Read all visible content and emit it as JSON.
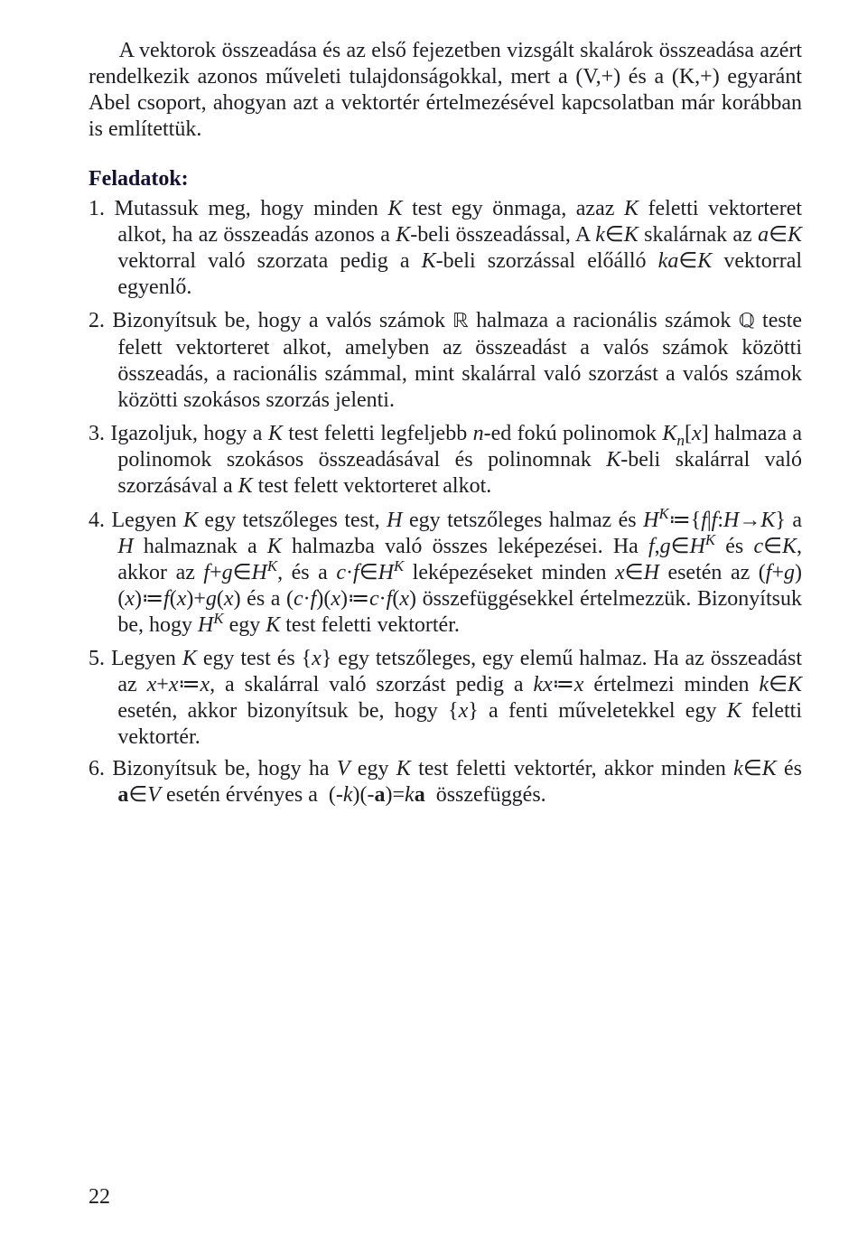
{
  "intro": "A vektorok összeadása és az első fejezetben vizsgált skalárok össze­adása azért rendelkezik azonos műveleti tulajdonságokkal, mert a (V,+) és a (K,+) egyaránt Abel csoport, ahogyan azt a vektortér értel­mezésével kapcso­latban már korábban is említettük.",
  "section_head": "Feladatok:",
  "exercises": [
    {
      "num": "1.",
      "html": "Mutassuk meg, hogy minden <span class=\"i\">K</span> test egy önmaga, azaz <span class=\"i\">K</span> feletti vektorteret alkot, ha az összeadás azonos a <span class=\"i\">K</span>-beli összeadással, A <span class=\"i\">k</span>∈<span class=\"i\">K</span> skalárnak az <span class=\"i\">a</span>∈<span class=\"i\">K</span> vektorral való szorzata pedig a <span class=\"i\">K</span>-beli szorzással előálló <span class=\"i\">ka</span>∈<span class=\"i\">K</span> vektorral egyenlő."
    },
    {
      "num": "2.",
      "html": "Bizonyítsuk be, hogy a valós számok <span class=\"ds\">ℝ</span> halmaza a racionális számok <span class=\"ds\">ℚ</span> teste felett vektorteret alkot, amelyben az összeadást a valós számok közötti összeadás, a racionális számmal, mint skalárral való szorzást a valós számok közötti szokásos szorzás jelenti."
    },
    {
      "num": "3.",
      "html": "Igazoljuk, hogy a <span class=\"i\">K</span> test feletti legfeljebb <span class=\"i\">n</span>-ed fokú polinomok <span class=\"i\">K<sub>n</sub></span>[<span class=\"i\">x</span>] halmaza a polinomok szokásos összeadásával és polinomnak <span class=\"i\">K</span>-beli ska­lárral való szorzásával a <span class=\"i\">K</span> test felett vektorteret alkot."
    },
    {
      "num": "4.",
      "html": "Legyen <span class=\"i\">K</span> egy tetszőleges test, <span class=\"i\">H</span> egy tetszőleges halmaz és <span class=\"i\">H<sup>K</sup></span>≔{<span class=\"i\">f</span>|<span class=\"i\">f</span>:<span class=\"i\">H</span>→<span class=\"i\">K</span>} a <span class=\"i\">H</span> halmaznak a <span class=\"i\">K</span> halmazba való összes leképezései. Ha <span class=\"i\">f</span>,<span class=\"i\">g</span>∈<span class=\"i\">H<sup>K</sup></span> és <span class=\"i\">c</span>∈<span class=\"i\">K</span>, akkor az <span class=\"i\">f</span>+<span class=\"i\">g</span>∈<span class=\"i\">H<sup>K</sup></span>, és a <span class=\"i\">c</span>·<span class=\"i\">f</span>∈<span class=\"i\">H<sup>K</sup></span> leképezéseket minden <span class=\"i\">x</span>∈<span class=\"i\">H</span> esetén az (<span class=\"i\">f</span>+<span class=\"i\">g</span>)(<span class=\"i\">x</span>)≔<span class=\"i\">f</span>(<span class=\"i\">x</span>)+<span class=\"i\">g</span>(<span class=\"i\">x</span>) és a (<span class=\"i\">c</span>·<span class=\"i\">f</span>)(<span class=\"i\">x</span>)≔<span class=\"i\">c</span>·<span class=\"i\">f</span>(<span class=\"i\">x</span>) összefüggésekkel értelmezzük. Bizonyítsuk be, hogy <span class=\"i\">H<sup>K</sup></span> egy <span class=\"i\">K</span> test feletti vektortér."
    },
    {
      "num": "5.",
      "html": "Legyen <span class=\"i\">K</span> egy test és {<span class=\"i\">x</span>} egy tetszőleges, egy elemű halmaz. Ha az össze­adást az <span class=\"i\">x</span>+<span class=\"i\">x</span>≔<span class=\"i\">x</span>, a skalárral való szorzást pedig a <span class=\"i\">kx</span>≔<span class=\"i\">x</span> értelmezi minden <span class=\"i\">k</span>∈<span class=\"i\">K</span> esetén, akkor bizonyítsuk be, hogy {<span class=\"i\">x</span>} a fenti műveletekkel egy <span class=\"i\">K</span> feletti vektortér."
    },
    {
      "num": "6.",
      "html": " Bizonyítsuk be, hogy ha <span class=\"i\">V</span> egy <span class=\"i\">K</span> test feletti vektortér, akkor minden <span class=\"i\">k</span>∈<span class=\"i\">K</span> és <span class=\"b\">a</span>∈<span class=\"i\">V</span> esetén érvényes a&nbsp; (-<span class=\"i\">k</span>)(-<span class=\"b\">a</span>)=<span class=\"i\">k</span><span class=\"b\">a</span> &nbsp;összefüggés."
    }
  ],
  "page_number": "22"
}
